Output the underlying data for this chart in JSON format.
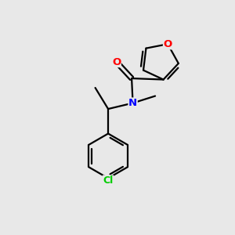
{
  "background_color": "#e8e8e8",
  "bond_color": "#000000",
  "atom_colors": {
    "O": "#ff0000",
    "N": "#0000ff",
    "Cl": "#00cc00",
    "C": "#000000"
  },
  "figsize": [
    3.0,
    3.0
  ],
  "dpi": 100,
  "bond_lw": 1.6,
  "font_size": 9.5
}
